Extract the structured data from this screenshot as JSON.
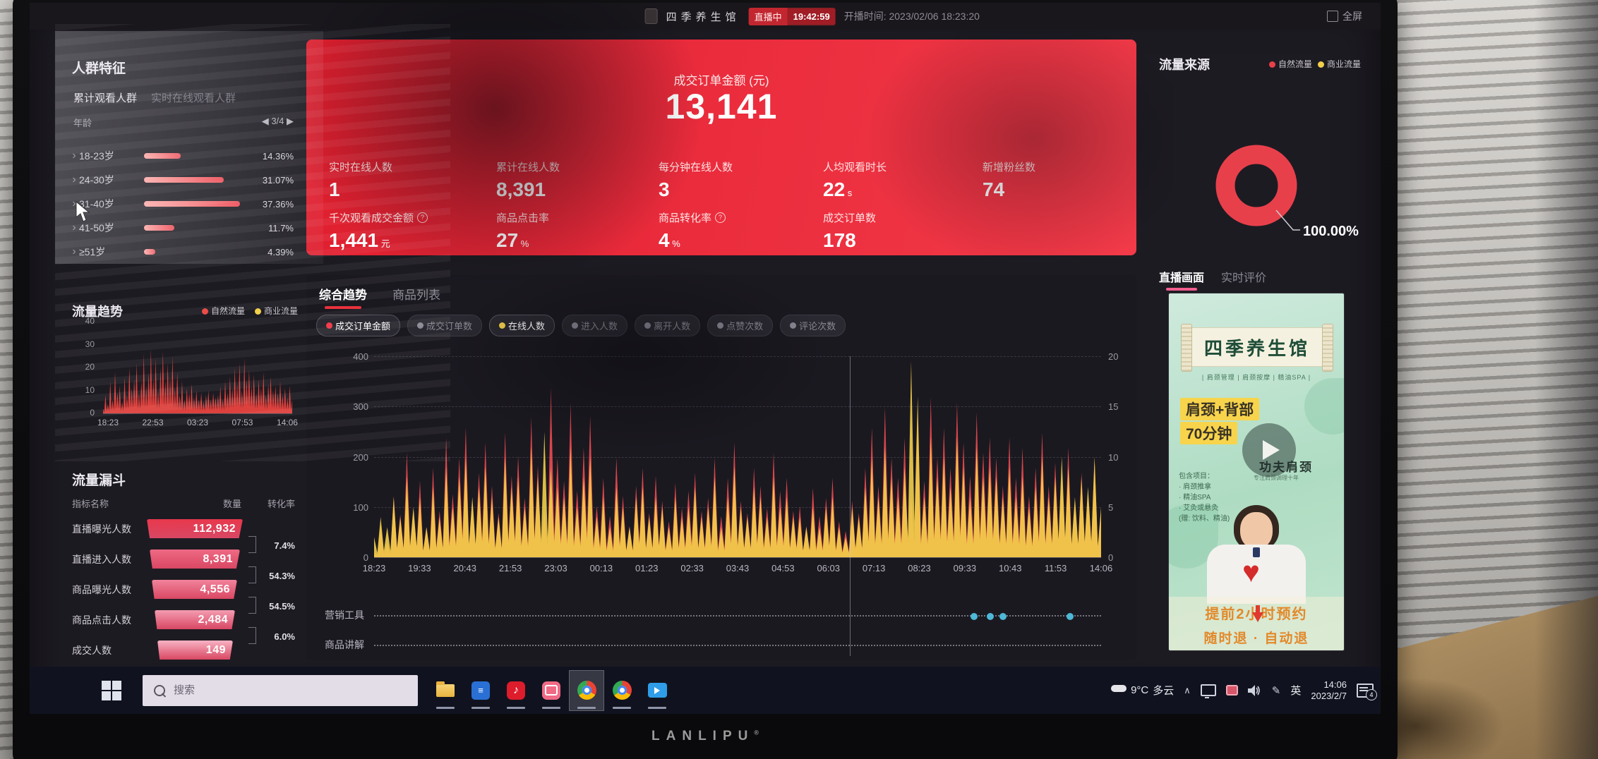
{
  "topbar": {
    "brand": "四季养生馆",
    "live_badge": "直播中",
    "live_timer": "19:42:59",
    "start_time": "开播时间: 2023/02/06 18:23:20",
    "fullscreen": "全屏"
  },
  "sidebar": {
    "audience": {
      "title": "人群特征",
      "tab_active": "累计观看人群",
      "tab_inactive": "实时在线观看人群",
      "group_label": "年龄",
      "pagination": "◀ 3/4 ▶",
      "max_pct": 37.36,
      "rows": [
        {
          "label": "18-23岁",
          "v": 14.36,
          "pct": "14.36%"
        },
        {
          "label": "24-30岁",
          "v": 31.07,
          "pct": "31.07%"
        },
        {
          "label": "31-40岁",
          "v": 37.36,
          "pct": "37.36%"
        },
        {
          "label": "41-50岁",
          "v": 11.7,
          "pct": "11.7%"
        },
        {
          "label": "≥51岁",
          "v": 4.39,
          "pct": "4.39%"
        }
      ]
    },
    "trend": {
      "title": "流量趋势",
      "legend": [
        {
          "label": "自然流量",
          "color": "#e8433f"
        },
        {
          "label": "商业流量",
          "color": "#f2cf4a"
        }
      ]
    },
    "funnel": {
      "title": "流量漏斗",
      "col_name": "指标名称",
      "col_qty": "数量",
      "col_rate": "转化率",
      "rows": [
        {
          "label": "直播曝光人数",
          "value": "112,932",
          "color": "#e8384d"
        },
        {
          "label": "直播进入人数",
          "value": "8,391",
          "color": "#ef6a84"
        },
        {
          "label": "商品曝光人数",
          "value": "4,556",
          "color": "#f2839b"
        },
        {
          "label": "商品点击人数",
          "value": "2,484",
          "color": "#f49cb1"
        },
        {
          "label": "成交人数",
          "value": "149",
          "color": "#f8b3c4"
        }
      ],
      "rates": [
        "7.4%",
        "54.3%",
        "54.5%",
        "6.0%"
      ]
    }
  },
  "gmv": {
    "label": "成交订单金额 (元)",
    "value": "13,141",
    "metrics_row1": [
      {
        "label": "实时在线人数",
        "value": "1"
      },
      {
        "label": "累计在线人数",
        "value": "8,391"
      },
      {
        "label": "每分钟在线人数",
        "value": "3"
      },
      {
        "label": "人均观看时长",
        "value": "22",
        "unit": "s"
      },
      {
        "label": "新增粉丝数",
        "value": "74"
      }
    ],
    "metrics_row2": [
      {
        "label": "千次观看成交金额",
        "info": true,
        "value": "1,441",
        "unit": "元"
      },
      {
        "label": "商品点击率",
        "value": "27",
        "unit": "%"
      },
      {
        "label": "商品转化率",
        "info": true,
        "value": "4",
        "unit": "%"
      },
      {
        "label": "成交订单数",
        "value": "178"
      }
    ]
  },
  "trendpanel": {
    "tab_active": "综合趋势",
    "tab_inactive": "商品列表",
    "pills": [
      {
        "label": "成交订单金额",
        "color": "#f23d4c",
        "active": true
      },
      {
        "label": "成交订单数",
        "color": "#8b8894",
        "active": false
      },
      {
        "label": "在线人数",
        "color": "#f2cf4a",
        "active": true
      },
      {
        "label": "进入人数",
        "color": "#8b8894",
        "active": false
      },
      {
        "label": "离开人数",
        "color": "#8b8894",
        "active": false
      },
      {
        "label": "点赞次数",
        "color": "#8b8894",
        "active": false
      },
      {
        "label": "评论次数",
        "color": "#8b8894",
        "active": false
      }
    ],
    "tool_row1": "营销工具",
    "tool_row2": "商品讲解",
    "tool_dots": [
      0.825,
      0.848,
      0.865,
      0.957
    ]
  },
  "source": {
    "title": "流量来源",
    "legend": [
      {
        "label": "自然流量",
        "color": "#e8404b"
      },
      {
        "label": "商业流量",
        "color": "#f2cf4a"
      }
    ],
    "annotation": "100.00%"
  },
  "live": {
    "tab_active": "直播画面",
    "tab_inactive": "实时评价",
    "poster": {
      "banner": "四季养生馆",
      "subtitle": "| 肩颈管理 | 肩颈按摩 | 精油SPA |",
      "highlight1": "肩颈+背部",
      "highlight2": "70分钟",
      "kungfu": "功夫肩颈",
      "kungfu_sub": "专注肩颈调理十年",
      "includes_title": "包含项目：",
      "includes": [
        "· 肩颈推拿",
        "· 精油SPA",
        "· 艾灸或悬灸",
        "(赠: 饮料、精油)"
      ],
      "footer1": "提前2小时预约",
      "footer2": "随时退 · 自动退"
    }
  },
  "taskbar": {
    "search_placeholder": "搜索",
    "weather_temp": "9°C",
    "weather_desc": "多云",
    "input_lang": "英",
    "time": "14:06",
    "date": "2023/2/7",
    "notification_badge": "4"
  },
  "monitor": {
    "brand": "LANLIPU",
    "reg": "®"
  },
  "chart_data": [
    {
      "id": "main-trend",
      "type": "area",
      "title": "综合趋势",
      "x_labels": [
        "18:23",
        "19:33",
        "20:43",
        "21:53",
        "23:03",
        "00:13",
        "01:23",
        "02:33",
        "03:43",
        "04:53",
        "06:03",
        "07:13",
        "08:23",
        "09:33",
        "10:43",
        "11:53",
        "14:06"
      ],
      "y_left": {
        "min": 0,
        "max": 400,
        "ticks": [
          400,
          300,
          200,
          100,
          0
        ]
      },
      "y_right": {
        "min": 0,
        "max": 20,
        "ticks": [
          20,
          15,
          10,
          5,
          0
        ]
      },
      "grid": true,
      "series": [
        {
          "name": "成交订单金额",
          "axis": "left",
          "color": "#e4484f",
          "values": [
            12,
            64,
            28,
            122,
            85,
            208,
            95,
            152,
            60,
            178,
            92,
            238,
            125,
            198,
            258,
            112,
            168,
            228,
            142,
            88,
            248,
            162,
            202,
            118,
            278,
            182,
            92,
            338,
            198,
            152,
            308,
            132,
            218,
            282,
            102,
            158,
            82,
            198,
            122,
            62,
            142,
            178,
            88,
            162,
            112,
            72,
            148,
            98,
            132,
            168,
            92,
            118,
            198,
            82,
            158,
            228,
            112,
            88,
            178,
            142,
            98,
            208,
            132,
            158,
            92,
            102,
            62,
            138,
            82,
            118,
            158,
            72,
            52,
            112,
            88,
            178,
            258,
            142,
            298,
            198,
            158,
            238,
            122,
            278,
            152,
            318,
            198,
            258,
            178,
            308,
            228,
            162,
            288,
            208,
            238,
            198,
            142,
            238,
            158,
            218,
            122,
            178,
            248,
            142,
            188,
            158,
            218,
            112,
            168,
            132,
            198,
            92
          ]
        },
        {
          "name": "在线人数",
          "axis": "right",
          "color": "#f2cf4a",
          "values": [
            2,
            4,
            3,
            6,
            4,
            8,
            5,
            6,
            3,
            7,
            4,
            9,
            5,
            8,
            10,
            6,
            7,
            9,
            6,
            4,
            10,
            7,
            8,
            5,
            11,
            8,
            12.5,
            9,
            7,
            6,
            11,
            5,
            8,
            10,
            4,
            6,
            3,
            7,
            5,
            3,
            6,
            7,
            4,
            6,
            5,
            3,
            6,
            4,
            5,
            7,
            4,
            5,
            8,
            3,
            6,
            9,
            5,
            4,
            7,
            6,
            4,
            8,
            5,
            6,
            4,
            4,
            3,
            5,
            3,
            5,
            6,
            3,
            2,
            5,
            4,
            7,
            10,
            6,
            11,
            8,
            6,
            9,
            19.5,
            16,
            6,
            12,
            8,
            10,
            7,
            12,
            9,
            6,
            11,
            8,
            9,
            8,
            6,
            9,
            6,
            8,
            5,
            7,
            10,
            6,
            8,
            10,
            9,
            6,
            8,
            7,
            10,
            5
          ]
        }
      ]
    },
    {
      "id": "traffic-trend",
      "type": "area",
      "title": "流量趋势",
      "x_labels": [
        "18:23",
        "22:53",
        "03:23",
        "07:53",
        "14:06"
      ],
      "y": {
        "min": 0,
        "max": 40,
        "ticks": [
          40,
          30,
          20,
          10,
          0
        ]
      },
      "series": [
        {
          "name": "自然流量",
          "color": "#e8433f",
          "values": [
            2,
            8,
            4,
            14,
            6,
            18,
            9,
            12,
            5,
            16,
            8,
            20,
            11,
            15,
            22,
            9,
            14,
            26,
            12,
            18,
            28,
            15,
            24,
            10,
            20,
            27,
            14,
            22,
            16,
            25,
            11,
            18,
            8,
            14,
            6,
            11,
            9,
            13,
            7,
            10,
            6,
            9,
            5,
            8,
            10,
            6,
            9,
            7,
            8,
            12,
            6,
            14,
            9,
            16,
            11,
            20,
            13,
            22,
            10,
            24,
            15,
            19,
            12,
            17,
            9,
            15,
            11,
            18,
            8,
            13,
            16,
            10,
            12,
            9,
            14,
            8,
            11,
            7,
            12,
            6
          ]
        },
        {
          "name": "商业流量",
          "color": "#f2cf4a",
          "values": []
        }
      ]
    },
    {
      "id": "traffic-source",
      "type": "donut",
      "slices": [
        {
          "label": "自然流量",
          "value": 100,
          "color": "#e8404b"
        },
        {
          "label": "商业流量",
          "value": 0,
          "color": "#f2cf4a"
        }
      ],
      "annotation": "100.00%"
    }
  ]
}
